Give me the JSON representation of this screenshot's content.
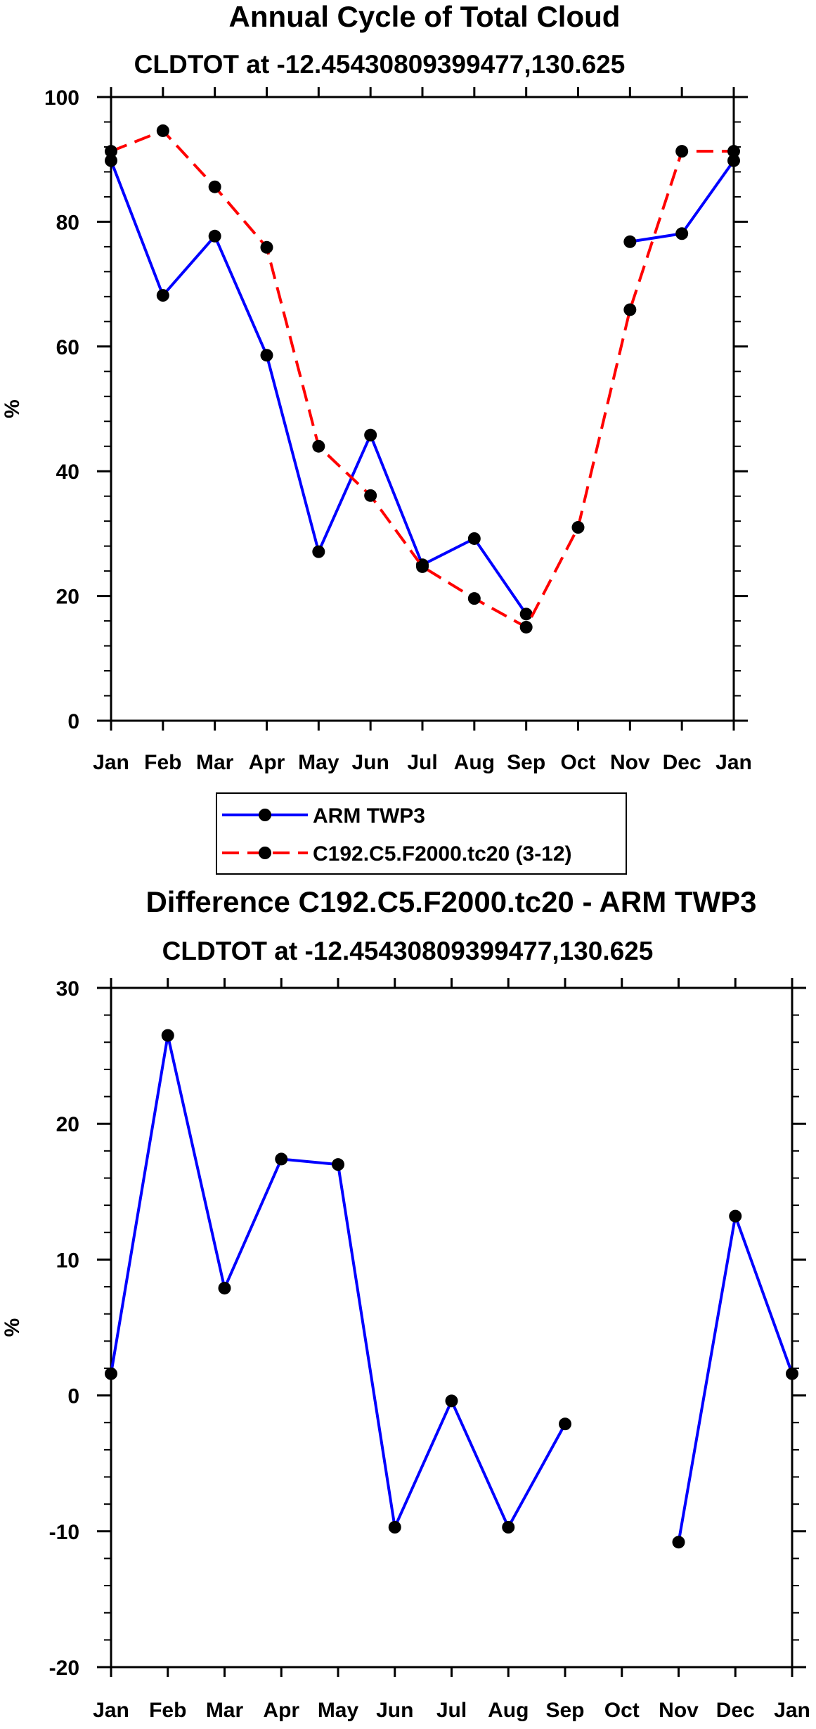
{
  "chart_data": [
    {
      "type": "line",
      "title": "Annual Cycle of Total Cloud",
      "subtitle": "CLDTOT at -12.45430809399477,130.625",
      "xlabel": "",
      "ylabel": "%",
      "categories": [
        "Jan",
        "Feb",
        "Mar",
        "Apr",
        "May",
        "Jun",
        "Jul",
        "Aug",
        "Sep",
        "Oct",
        "Nov",
        "Dec",
        "Jan"
      ],
      "ylim": [
        0,
        100
      ],
      "yticks": [
        0,
        20,
        40,
        60,
        80,
        100
      ],
      "legend_position": "below",
      "series": [
        {
          "name": "ARM TWP3",
          "color": "#0000ff",
          "line_style": "solid",
          "values": [
            89.8,
            68.2,
            77.7,
            58.6,
            27.1,
            45.8,
            25.0,
            29.2,
            17.1,
            null,
            76.8,
            78.1,
            89.8
          ]
        },
        {
          "name": "C192.C5.F2000.tc20 (3-12)",
          "color": "#ff0000",
          "line_style": "dashed",
          "values": [
            91.3,
            94.6,
            85.6,
            75.9,
            44.0,
            36.1,
            24.7,
            19.6,
            15.0,
            31.0,
            65.9,
            91.3,
            91.3
          ]
        }
      ]
    },
    {
      "type": "line",
      "title": "Difference C192.C5.F2000.tc20 - ARM TWP3",
      "subtitle": "CLDTOT at -12.45430809399477,130.625",
      "xlabel": "",
      "ylabel": "%",
      "categories": [
        "Jan",
        "Feb",
        "Mar",
        "Apr",
        "May",
        "Jun",
        "Jul",
        "Aug",
        "Sep",
        "Oct",
        "Nov",
        "Dec",
        "Jan"
      ],
      "ylim": [
        -20,
        30
      ],
      "yticks": [
        -20,
        -10,
        0,
        10,
        20,
        30
      ],
      "series": [
        {
          "name": "Difference",
          "color": "#0000ff",
          "line_style": "solid",
          "values": [
            1.6,
            26.5,
            7.9,
            17.4,
            17.0,
            -9.7,
            -0.4,
            -9.7,
            -2.1,
            null,
            -10.8,
            13.2,
            1.6
          ]
        }
      ]
    }
  ]
}
